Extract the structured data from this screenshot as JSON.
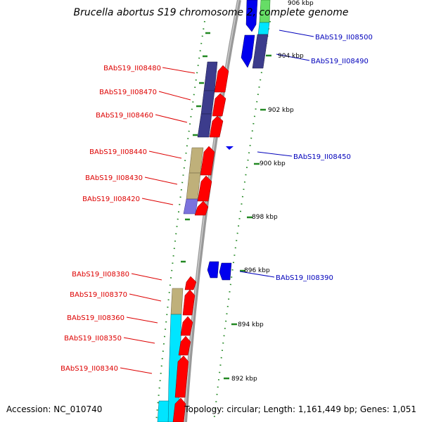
{
  "title": "Brucella abortus S19 chromosome 2, complete genome",
  "footer": {
    "accession": "Accession: NC_010740",
    "topology": "Topology: circular; Length: 1,161,449 bp; Genes: 1,051"
  },
  "colors": {
    "forward_label": "#dd0000",
    "reverse_label": "#0000bb",
    "forward_strand": "#ff0000",
    "reverse_strand": "#0000ee",
    "cog_navy": "#3c3c8c",
    "cog_olive": "#bfb07a",
    "cog_cyan": "#00e5ff",
    "cog_lavender": "#7b72dd",
    "cog_green": "#66dd66",
    "backbone": "#999999",
    "tick": "#228822"
  },
  "ticks": [
    {
      "label": "906 kbp"
    },
    {
      "label": "904 kbp"
    },
    {
      "label": "902 kbp"
    },
    {
      "label": "900 kbp"
    },
    {
      "label": "898 kbp"
    },
    {
      "label": "896 kbp"
    },
    {
      "label": "894 kbp"
    },
    {
      "label": "892 kbp"
    }
  ],
  "left_labels": [
    {
      "id": "BAbS19_II08480"
    },
    {
      "id": "BAbS19_II08470"
    },
    {
      "id": "BAbS19_II08460"
    },
    {
      "id": "BAbS19_II08440"
    },
    {
      "id": "BAbS19_II08430"
    },
    {
      "id": "BAbS19_II08420"
    },
    {
      "id": "BAbS19_II08380"
    },
    {
      "id": "BAbS19_II08370"
    },
    {
      "id": "BAbS19_II08360"
    },
    {
      "id": "BAbS19_II08350"
    },
    {
      "id": "BAbS19_II08340"
    }
  ],
  "right_labels": [
    {
      "id": "BAbS19_II08500"
    },
    {
      "id": "BAbS19_II08490"
    },
    {
      "id": "BAbS19_II08450"
    },
    {
      "id": "BAbS19_II08390"
    }
  ]
}
